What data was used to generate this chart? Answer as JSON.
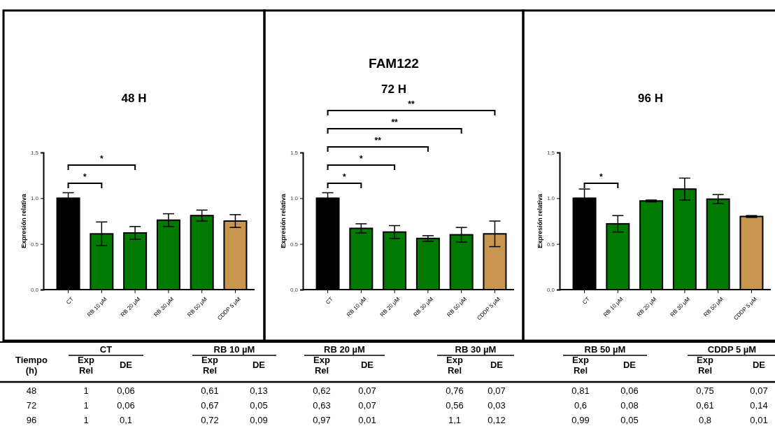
{
  "chart_data": [
    {
      "type": "bar",
      "title": "48 H",
      "ylabel": "Expresión relativa",
      "categories": [
        "CT",
        "RB 10 μM",
        "RB 20 μM",
        "RB 30 μM",
        "RB 50 μM",
        "CDDP 5 μM"
      ],
      "values": [
        1,
        0.61,
        0.62,
        0.76,
        0.81,
        0.75
      ],
      "errors": [
        0.06,
        0.13,
        0.07,
        0.07,
        0.06,
        0.07
      ],
      "colors": [
        "#000000",
        "#007a00",
        "#007a00",
        "#007a00",
        "#007a00",
        "#c8964f"
      ],
      "ylim": [
        0,
        1.5
      ],
      "yticks": [
        {
          "value": 0,
          "label": "0.0"
        },
        {
          "value": 0.5,
          "label": "0.5"
        },
        {
          "value": 1,
          "label": "1.0"
        },
        {
          "value": 1.5,
          "label": "1.5"
        }
      ],
      "annotations": [
        "*",
        "*"
      ]
    },
    {
      "type": "bar",
      "title": "FAM122",
      "subtitle": "72 H",
      "ylabel": "Expresión relativa",
      "categories": [
        "CT",
        "RB 10 μM",
        "RB 20 μM",
        "RB 30 μM",
        "RB 50 μM",
        "CDDP 5 μM"
      ],
      "values": [
        1,
        0.67,
        0.63,
        0.56,
        0.6,
        0.61
      ],
      "errors": [
        0.06,
        0.05,
        0.07,
        0.03,
        0.08,
        0.14
      ],
      "colors": [
        "#000000",
        "#007a00",
        "#007a00",
        "#007a00",
        "#007a00",
        "#c8964f"
      ],
      "ylim": [
        0,
        1.5
      ],
      "yticks": [
        {
          "value": 0,
          "label": "0.0"
        },
        {
          "value": 0.5,
          "label": "0.5"
        },
        {
          "value": 1,
          "label": "1.0"
        },
        {
          "value": 1.5,
          "label": "1.5"
        }
      ],
      "annotations": [
        "*",
        "*",
        "**",
        "**",
        "**"
      ]
    },
    {
      "type": "bar",
      "title": "96 H",
      "ylabel": "Expresión relativa",
      "categories": [
        "CT",
        "RB 10 μM",
        "RB 20 μM",
        "RB 30 μM",
        "RB 50 μM",
        "CDDP 5 μM"
      ],
      "values": [
        1,
        0.72,
        0.97,
        1.1,
        0.99,
        0.8
      ],
      "errors": [
        0.1,
        0.09,
        0.01,
        0.12,
        0.05,
        0.01
      ],
      "colors": [
        "#000000",
        "#007a00",
        "#007a00",
        "#007a00",
        "#007a00",
        "#c8964f"
      ],
      "ylim": [
        0,
        1.5
      ],
      "yticks": [
        {
          "value": 0,
          "label": "0.0"
        },
        {
          "value": 0.5,
          "label": "0.5"
        },
        {
          "value": 1,
          "label": "1.0"
        },
        {
          "value": 1.5,
          "label": "1.5"
        }
      ],
      "annotations": [
        "*"
      ]
    },
    {
      "type": "other",
      "ylabel": "Tiempo (h)",
      "categories": [
        "CT",
        "RB 10 µM",
        "RB 20 µM",
        "RB 30 µM",
        "RB 50 µM",
        "CDDP 5 µM"
      ],
      "annotations": [
        "Exp Rel",
        "DE"
      ],
      "y_categories": [
        "48",
        "72",
        "96"
      ],
      "cell_labels": [
        [
          "1",
          "0,06",
          "0,61",
          "0,13",
          "0,62",
          "0,07",
          "0,76",
          "0,07",
          "0,81",
          "0,06",
          "0,75",
          "0,07"
        ],
        [
          "1",
          "0,06",
          "0,67",
          "0,05",
          "0,63",
          "0,07",
          "0,56",
          "0,03",
          "0,6",
          "0,08",
          "0,61",
          "0,14"
        ],
        [
          "1",
          "0,1",
          "0,72",
          "0,09",
          "0,97",
          "0,01",
          "1,1",
          "0,12",
          "0,99",
          "0,05",
          "0,8",
          "0,01"
        ]
      ]
    }
  ]
}
